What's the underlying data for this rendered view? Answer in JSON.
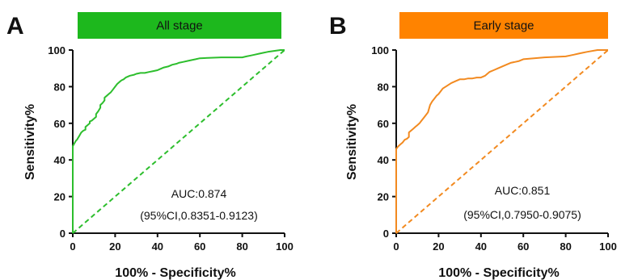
{
  "chart_data": [
    {
      "type": "line",
      "panel": "A",
      "title": "All stage",
      "title_color": "#1DB81D",
      "color": "#2DBE2D",
      "xlabel": "100% - Specificity%",
      "ylabel": "Sensitivity%",
      "xlim": [
        0,
        100
      ],
      "ylim": [
        0,
        100
      ],
      "xticks": [
        "0",
        "20",
        "40",
        "60",
        "80",
        "100"
      ],
      "yticks": [
        "0",
        "20",
        "40",
        "60",
        "80",
        "100"
      ],
      "grid": false,
      "auc_label": "AUC:0.874",
      "ci_label": "(95%CI,0.8351-0.9123)",
      "series": [
        {
          "style": "solid",
          "x": [
            0,
            0,
            0.5,
            1,
            1.5,
            2,
            2.5,
            3,
            3.5,
            4,
            4.5,
            5,
            6,
            6,
            7,
            8,
            8,
            9,
            10,
            11,
            11,
            12,
            13,
            13,
            14,
            15,
            15,
            16,
            17,
            18,
            19,
            20,
            21,
            22,
            23,
            24,
            25,
            27,
            29,
            30,
            32,
            34,
            36,
            38,
            40,
            41,
            43,
            45,
            47,
            49,
            50,
            52,
            54,
            56,
            58,
            60,
            70,
            80,
            82,
            84,
            86,
            88,
            90,
            92,
            95,
            98,
            100
          ],
          "y": [
            0,
            47.5,
            48.5,
            49.5,
            50.5,
            51,
            52,
            53,
            54,
            55,
            55.5,
            56,
            56.5,
            58,
            59,
            60,
            61,
            61.5,
            62.5,
            63.5,
            65,
            66.5,
            68.5,
            70,
            71,
            72.5,
            74,
            75,
            76,
            77,
            78.5,
            80,
            81.5,
            82.5,
            83.5,
            84,
            85,
            86,
            86.5,
            87,
            87.5,
            87.5,
            88,
            88.5,
            89,
            89.5,
            90.5,
            91,
            92,
            92.5,
            93,
            93.5,
            94,
            94.5,
            95,
            95.5,
            96,
            96,
            96.5,
            97,
            97.5,
            98,
            98.5,
            99,
            99.5,
            100,
            100
          ]
        },
        {
          "style": "dashed",
          "x": [
            0,
            100
          ],
          "y": [
            0,
            100
          ]
        }
      ]
    },
    {
      "type": "line",
      "panel": "B",
      "title": "Early stage",
      "title_color": "#FF8300",
      "color": "#F28A20",
      "xlabel": "100% - Specificity%",
      "ylabel": "Sensitivity%",
      "xlim": [
        0,
        100
      ],
      "ylim": [
        0,
        100
      ],
      "xticks": [
        "0",
        "20",
        "40",
        "60",
        "80",
        "100"
      ],
      "yticks": [
        "0",
        "20",
        "40",
        "60",
        "80",
        "100"
      ],
      "grid": false,
      "auc_label": "AUC:0.851",
      "ci_label": "(95%CI,0.7950-0.9075)",
      "series": [
        {
          "style": "solid",
          "x": [
            0,
            0,
            1,
            2,
            3,
            4,
            5,
            6,
            6,
            8,
            9,
            10,
            11,
            12,
            13,
            14,
            15,
            16,
            17,
            18,
            19,
            20,
            21,
            22,
            24,
            26,
            28,
            30,
            32,
            34,
            36,
            38,
            40,
            42,
            44,
            46,
            48,
            50,
            52,
            54,
            56,
            58,
            60,
            70,
            80,
            82,
            84,
            86,
            88,
            90,
            95,
            100
          ],
          "y": [
            0,
            46,
            47.5,
            48.5,
            49.5,
            51,
            51.5,
            52.5,
            55,
            57,
            58,
            59,
            60,
            61.5,
            63,
            64.5,
            66,
            70,
            72,
            73.5,
            75,
            76,
            77.5,
            79,
            80.5,
            82,
            83,
            84,
            84,
            84.5,
            84.5,
            85,
            85,
            86,
            88,
            89,
            90,
            91,
            92,
            93,
            93.5,
            94,
            95,
            96,
            96.5,
            97,
            97.5,
            98,
            98.5,
            99,
            100,
            100
          ]
        },
        {
          "style": "dashed",
          "x": [
            0,
            100
          ],
          "y": [
            0,
            100
          ]
        }
      ]
    }
  ]
}
